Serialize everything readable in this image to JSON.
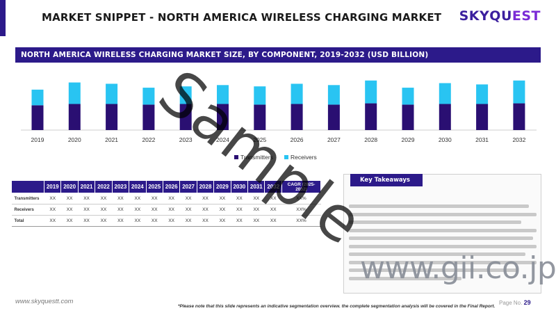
{
  "header": {
    "title": "MARKET SNIPPET - NORTH AMERICA WIRELESS CHARGING MARKET",
    "logo_main": "SKYQU",
    "logo_accent": "EST"
  },
  "chart_title": "NORTH AMERICA WIRELESS CHARGING MARKET SIZE, BY COMPONENT, 2019-2032 (USD BILLION)",
  "colors": {
    "transmitters": "#2a0f72",
    "receivers": "#29c4f2",
    "brand": "#2c1a8a"
  },
  "chart_data": {
    "type": "bar",
    "stacked": true,
    "title": "NORTH AMERICA WIRELESS CHARGING MARKET SIZE, BY COMPONENT, 2019-2032 (USD BILLION)",
    "categories": [
      "2019",
      "2020",
      "2021",
      "2022",
      "2023",
      "2024",
      "2025",
      "2026",
      "2027",
      "2028",
      "2029",
      "2030",
      "2031",
      "2032"
    ],
    "series": [
      {
        "name": "Transmitters",
        "values": [
          38,
          40,
          40,
          39,
          40,
          40,
          39,
          40,
          39,
          41,
          39,
          40,
          40,
          41
        ]
      },
      {
        "name": "Receivers",
        "values": [
          24,
          33,
          31,
          26,
          27,
          29,
          28,
          31,
          30,
          35,
          26,
          32,
          30,
          35
        ]
      }
    ],
    "legend": [
      "Transmitters",
      "Receivers"
    ],
    "legend_position": "bottom",
    "ylim": [
      0,
      80
    ],
    "grid": false
  },
  "table": {
    "headers": [
      "",
      "2019",
      "2020",
      "2021",
      "2022",
      "2023",
      "2024",
      "2025",
      "2026",
      "2027",
      "2028",
      "2029",
      "2030",
      "2031",
      "2032",
      "CAGR (2025-2032)"
    ],
    "rows": [
      {
        "label": "Transmitters",
        "cells": [
          "XX",
          "XX",
          "XX",
          "XX",
          "XX",
          "XX",
          "XX",
          "XX",
          "XX",
          "XX",
          "XX",
          "XX",
          "XX",
          "XX",
          "XX%"
        ]
      },
      {
        "label": "Receivers",
        "cells": [
          "XX",
          "XX",
          "XX",
          "XX",
          "XX",
          "XX",
          "XX",
          "XX",
          "XX",
          "XX",
          "XX",
          "XX",
          "XX",
          "XX",
          "XX%"
        ]
      },
      {
        "label": "Total",
        "cells": [
          "XX",
          "XX",
          "XX",
          "XX",
          "XX",
          "XX",
          "XX",
          "XX",
          "XX",
          "XX",
          "XX",
          "XX",
          "XX",
          "XX",
          "XX%"
        ]
      }
    ]
  },
  "key_takeaways": {
    "title": "Key Takeaways"
  },
  "watermark": "Sample",
  "gii_watermark": "www.gii.co.jp",
  "footer": {
    "url": "www.skyquestt.com",
    "note": "*Please note that this slide represents an indicative segmentation overview. the complete segmentation analysis will be covered in the Final Report.",
    "page_label": "Page No.",
    "page_number": "29"
  }
}
